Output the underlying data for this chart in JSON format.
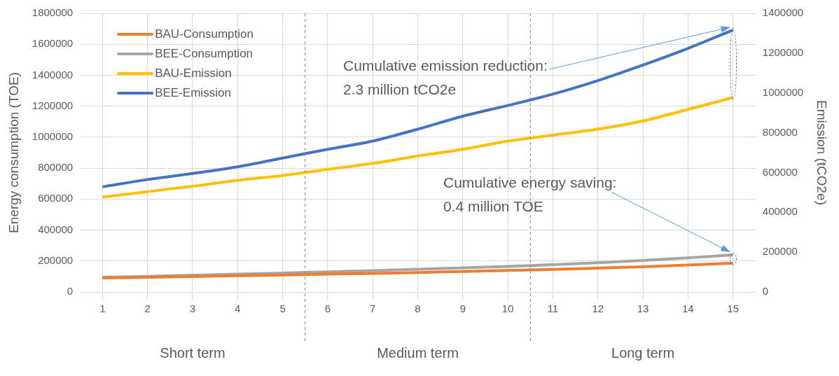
{
  "chart_data": {
    "type": "line",
    "x": [
      1,
      2,
      3,
      4,
      5,
      6,
      7,
      8,
      9,
      10,
      11,
      12,
      13,
      14,
      15
    ],
    "xlim": [
      0.5,
      15.5
    ],
    "xticks": [
      1,
      2,
      3,
      4,
      5,
      6,
      7,
      8,
      9,
      10,
      11,
      12,
      13,
      14,
      15
    ],
    "series": [
      {
        "name": "BAU-Consumption",
        "color": "#ed7d31",
        "values": [
          90000,
          95000,
          100000,
          105000,
          110000,
          115000,
          120000,
          126000,
          132000,
          139000,
          146000,
          154000,
          163000,
          174000,
          186000
        ]
      },
      {
        "name": "BEE-Consumption",
        "color": "#a5a5a5",
        "values": [
          95000,
          101000,
          108000,
          115000,
          122000,
          130000,
          138000,
          147000,
          156000,
          165000,
          176000,
          189000,
          204000,
          220000,
          240000
        ]
      },
      {
        "name": "BAU-Emission",
        "color": "#ffc000",
        "axis": "y2",
        "values": [
          477000,
          504000,
          531000,
          561000,
          585000,
          616000,
          646000,
          683000,
          717000,
          758000,
          788000,
          818000,
          859000,
          917000,
          977000
        ]
      },
      {
        "name": "BEE-Emission",
        "color": "#4472c4",
        "axis": "y2",
        "values": [
          528000,
          565000,
          595000,
          629000,
          673000,
          717000,
          758000,
          818000,
          883000,
          937000,
          994000,
          1062000,
          1140000,
          1224000,
          1316000
        ]
      }
    ],
    "ylabel": "Energy consumption (TOE)",
    "y2label": "Emission (tCO2e)",
    "ylim": [
      0,
      1800000
    ],
    "yticks": [
      0,
      200000,
      400000,
      600000,
      800000,
      1000000,
      1200000,
      1400000,
      1600000,
      1800000
    ],
    "y2lim": [
      0,
      1400000
    ],
    "y2ticks": [
      0,
      200000,
      400000,
      600000,
      800000,
      1000000,
      1200000,
      1400000
    ],
    "ref_lines": [
      {
        "axis": "x",
        "value": 5.5,
        "line_style": "dashed"
      },
      {
        "axis": "x",
        "value": 10.5,
        "line_style": "dashed"
      }
    ],
    "annotations": [
      {
        "text": "Cumulative emission reduction:\n2.3 million tCO2e",
        "x": 15,
        "y": 1692000
      },
      {
        "text": "Cumulative energy saving:\n0.4 million TOE",
        "x": 15,
        "y": 240000
      },
      "Short term",
      "Medium term",
      "Long term"
    ],
    "grid": true,
    "legend": "top left",
    "marker": "none",
    "line_style": "solid"
  }
}
